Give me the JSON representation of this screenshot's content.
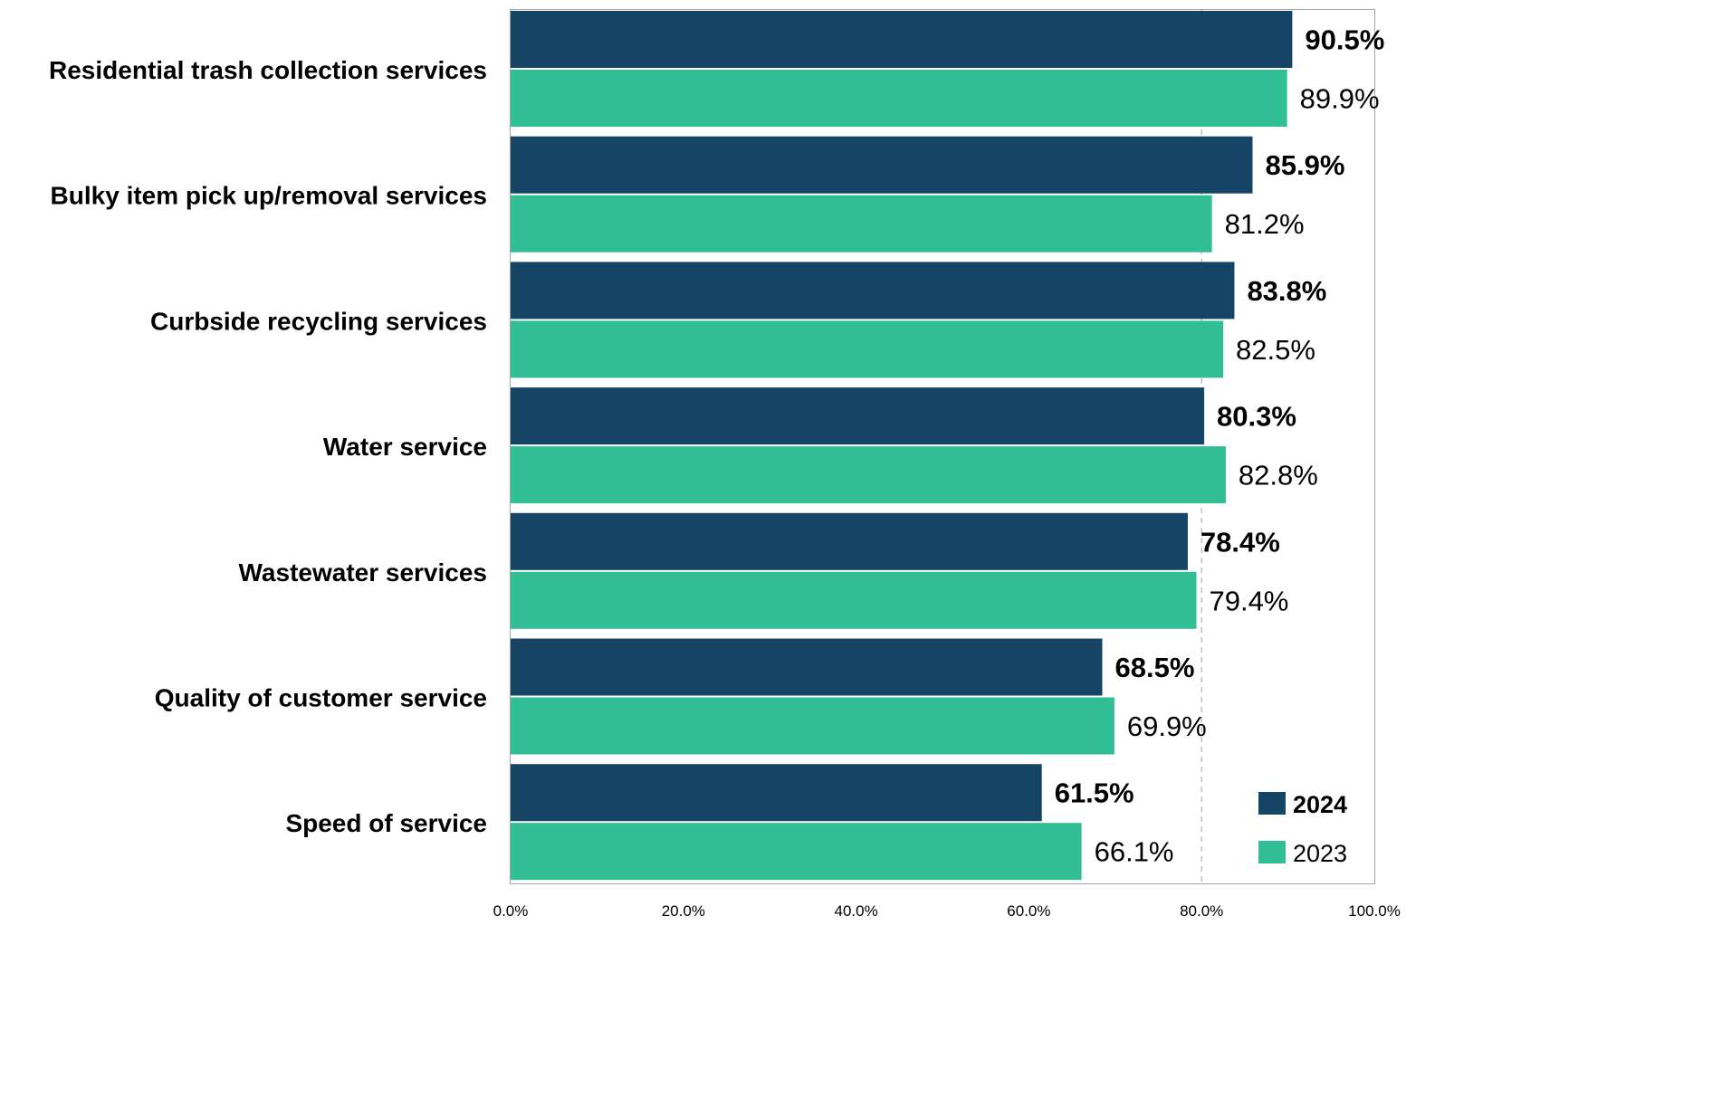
{
  "chart_data": {
    "type": "bar",
    "orientation": "horizontal",
    "title": "",
    "xlabel": "",
    "ylabel": "",
    "xlim": [
      0,
      100
    ],
    "categories": [
      "Residential trash collection services",
      "Bulky item pick up/removal services",
      "Curbside recycling services",
      "Water service",
      "Wastewater services",
      "Quality of customer service",
      "Speed of service"
    ],
    "series": [
      {
        "name": "2024",
        "color": "#164465",
        "values": [
          90.5,
          85.9,
          83.8,
          80.3,
          78.4,
          68.5,
          61.5
        ],
        "labels": [
          "90.5%",
          "85.9%",
          "83.8%",
          "80.3%",
          "78.4%",
          "68.5%",
          "61.5%"
        ]
      },
      {
        "name": "2023",
        "color": "#32be94",
        "values": [
          89.9,
          81.2,
          82.5,
          82.8,
          79.4,
          69.9,
          66.1
        ],
        "labels": [
          "89.9%",
          "81.2%",
          "82.5%",
          "82.8%",
          "79.4%",
          "69.9%",
          "66.1%"
        ]
      }
    ],
    "x_ticks": [
      "0.0%",
      "20.0%",
      "40.0%",
      "60.0%",
      "80.0%",
      "100.0%"
    ],
    "x_tick_values": [
      0,
      20,
      40,
      60,
      80,
      100
    ],
    "reference_line": 80,
    "grid": false,
    "legend_position": "bottom-right"
  }
}
